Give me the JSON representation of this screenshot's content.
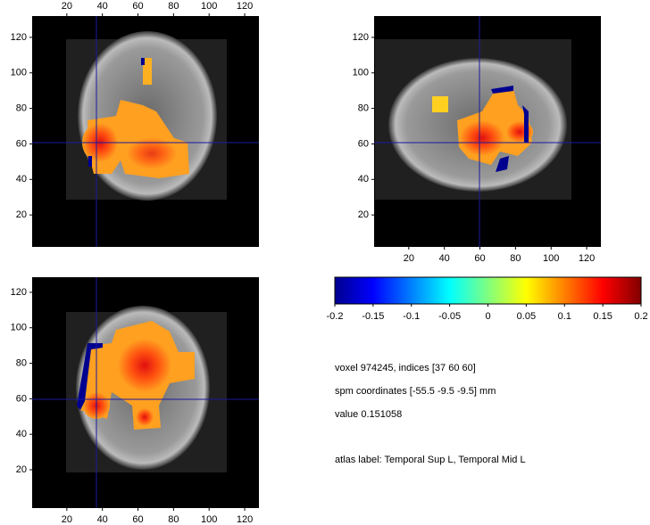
{
  "panels": [
    {
      "xticks": [
        20,
        40,
        60,
        80,
        100,
        120
      ],
      "yticks": [
        20,
        40,
        60,
        80,
        100,
        120
      ],
      "xlim": [
        0.5,
        128
      ],
      "ylim": [
        2,
        132
      ]
    },
    {
      "xticks": [
        20,
        40,
        60,
        80,
        100,
        120
      ],
      "yticks": [
        20,
        40,
        60,
        80,
        100,
        120
      ],
      "xlim": [
        0.5,
        128
      ],
      "ylim": [
        2,
        132
      ]
    },
    {
      "xticks": [
        20,
        40,
        60,
        80,
        100,
        120
      ],
      "yticks": [
        20,
        40,
        60,
        80,
        100,
        120
      ],
      "xlim": [
        0.5,
        128
      ],
      "ylim": [
        -1.6,
        128.5
      ]
    }
  ],
  "colorbar": {
    "ticks": [
      -0.2,
      -0.15,
      -0.1,
      -0.05,
      0,
      0.05,
      0.1,
      0.15,
      0.2
    ],
    "lim": [
      -0.2,
      0.2
    ]
  },
  "info": [
    "voxel 974245, indices [37 60 60]",
    "spm coordinates [-55.5 -9.5 -9.5] mm",
    "value 0.151058",
    "atlas label: Temporal Sup L, Temporal Mid L"
  ]
}
